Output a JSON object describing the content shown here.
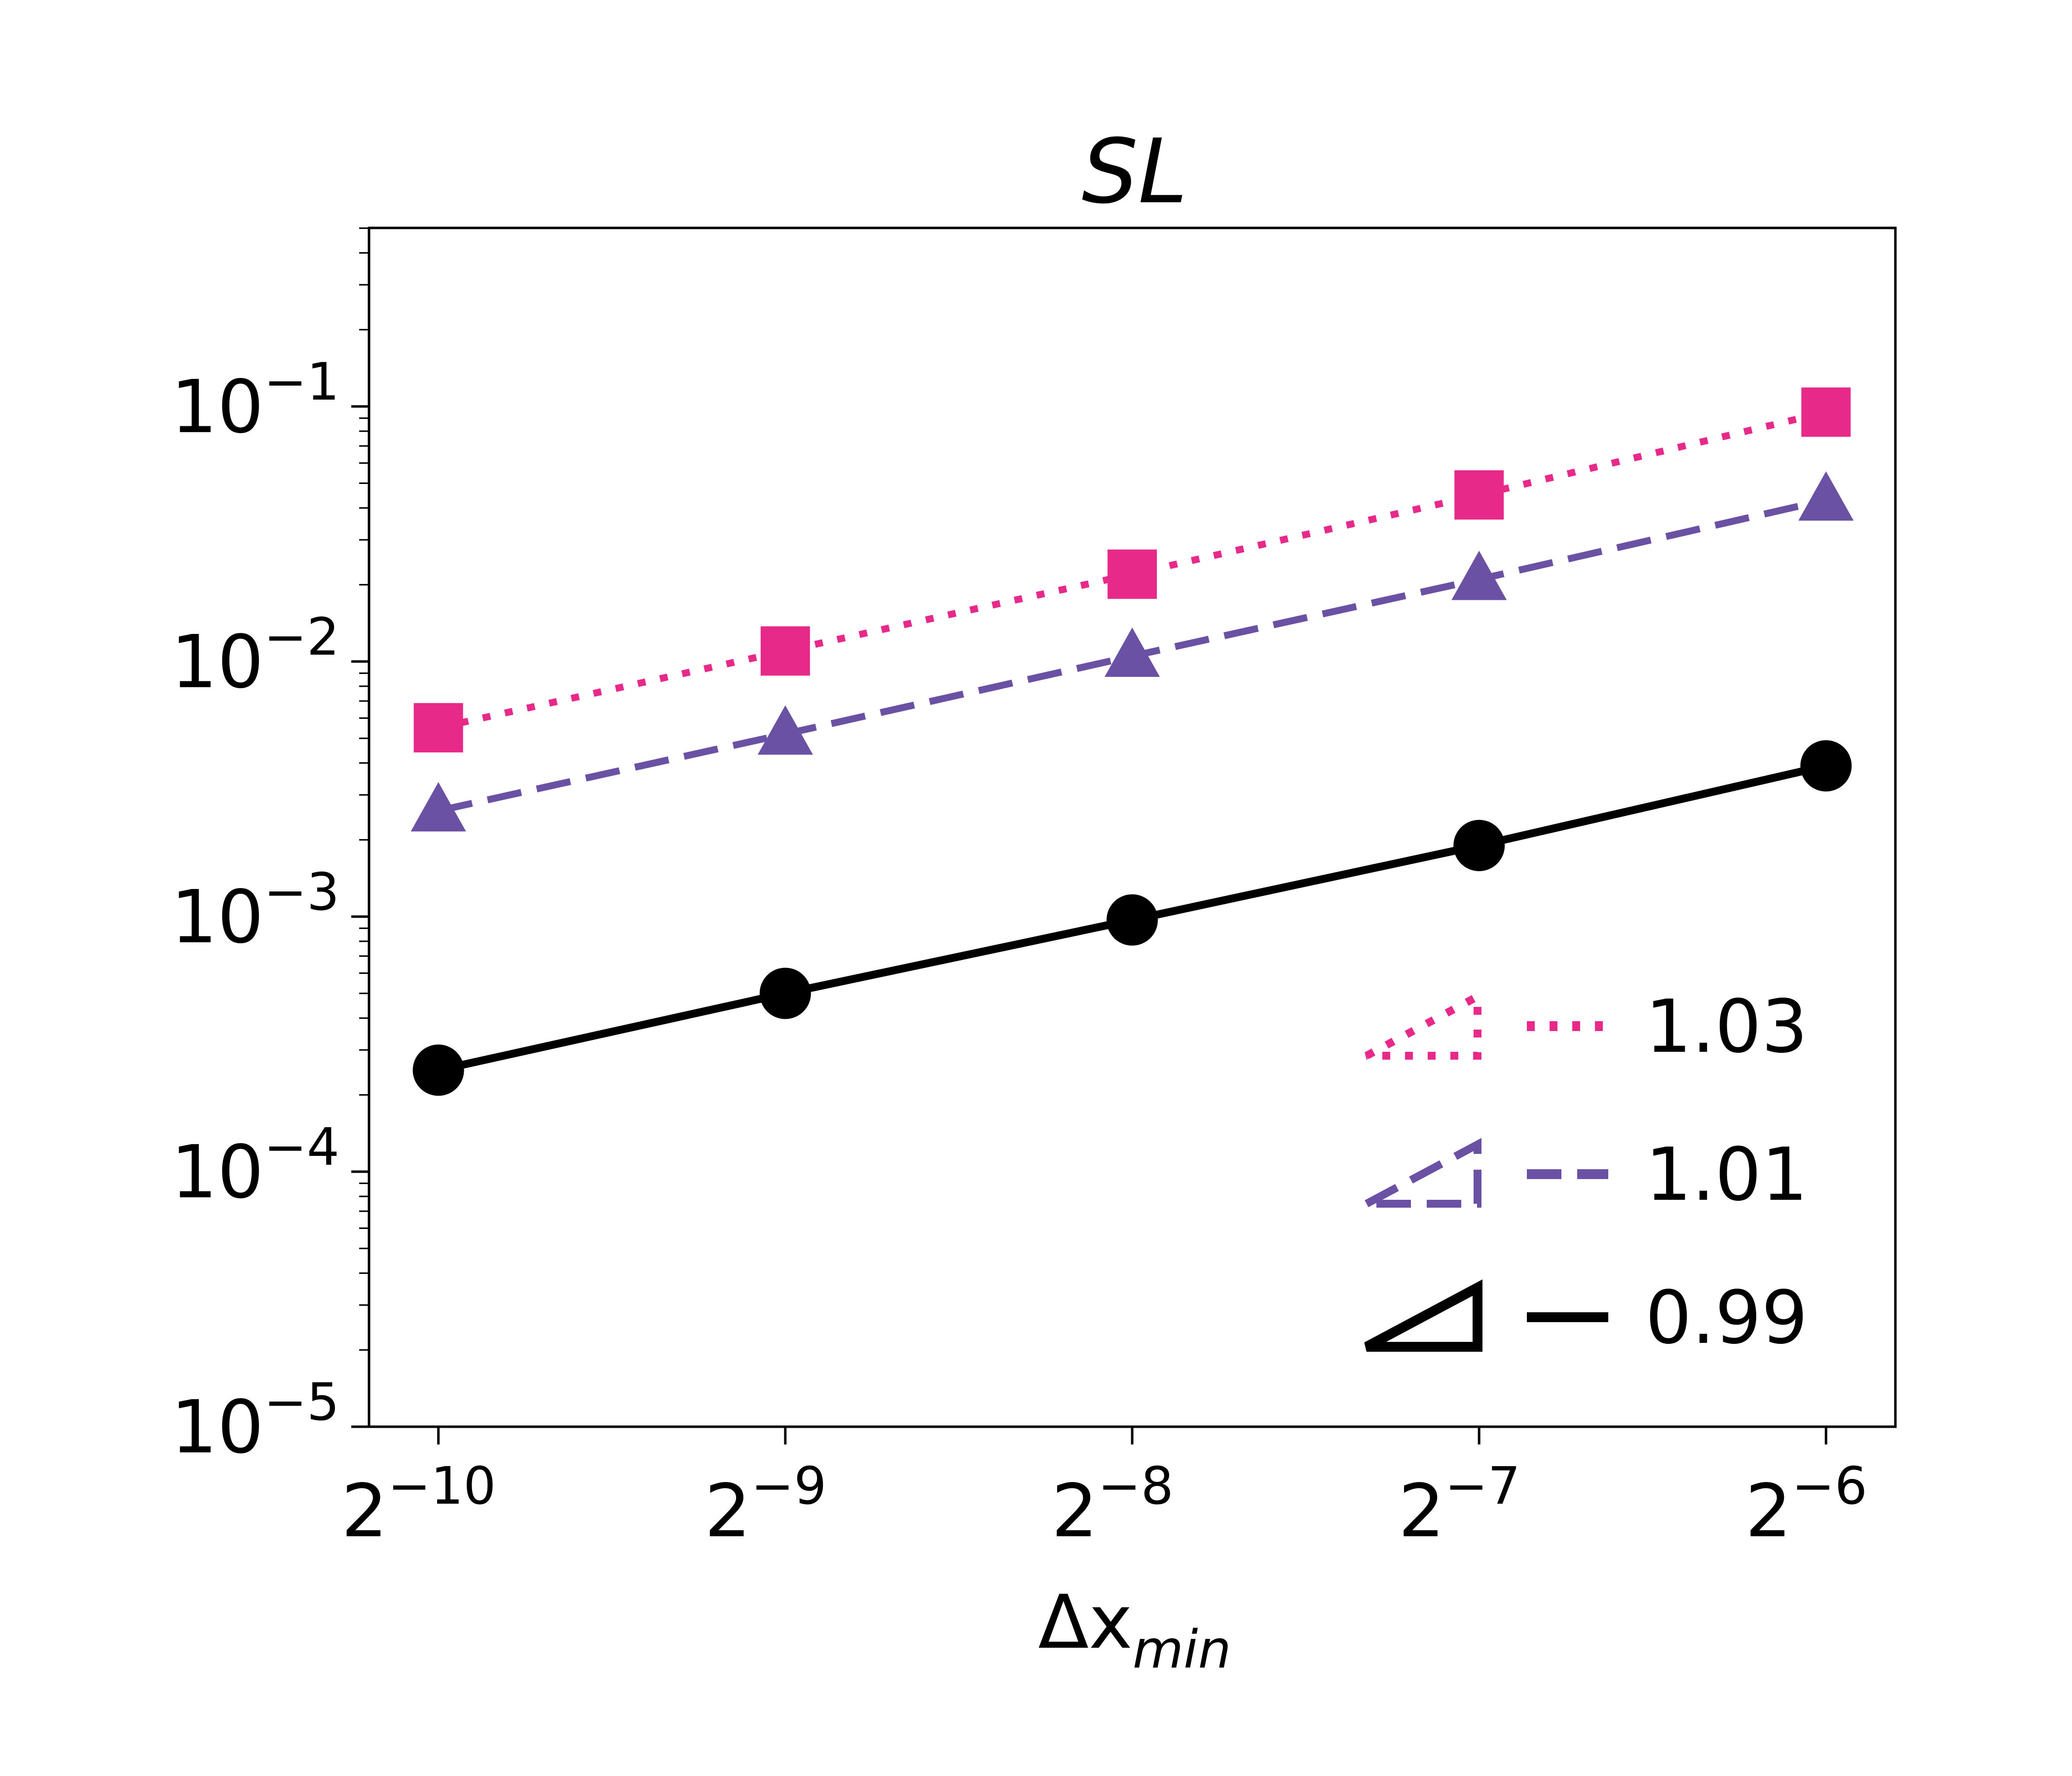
{
  "chart_data": {
    "type": "line",
    "title": "SL",
    "xscale": "log2",
    "yscale": "log10",
    "xlabel": {
      "symbol": "Δx",
      "subscript": "min"
    },
    "ylabel": "",
    "xlim_exponent": [
      -10.2,
      -5.8
    ],
    "ylim_exponent": [
      -5,
      -0.3
    ],
    "x_ticks": [
      {
        "base": "2",
        "exponent": "−10",
        "value_exp": -10
      },
      {
        "base": "2",
        "exponent": "−9",
        "value_exp": -9
      },
      {
        "base": "2",
        "exponent": "−8",
        "value_exp": -8
      },
      {
        "base": "2",
        "exponent": "−7",
        "value_exp": -7
      },
      {
        "base": "2",
        "exponent": "−6",
        "value_exp": -6
      }
    ],
    "y_ticks": [
      {
        "base": "10",
        "exponent": "−1",
        "value_exp": -1
      },
      {
        "base": "10",
        "exponent": "−2",
        "value_exp": -2
      },
      {
        "base": "10",
        "exponent": "−3",
        "value_exp": -3
      },
      {
        "base": "10",
        "exponent": "−4",
        "value_exp": -4
      },
      {
        "base": "10",
        "exponent": "−5",
        "value_exp": -5
      }
    ],
    "x": [
      0.0009765625,
      0.001953125,
      0.00390625,
      0.0078125,
      0.015625
    ],
    "series": [
      {
        "name": "pink-dotted",
        "legend": "1.03",
        "color": "#e7298a",
        "linestyle": "dotted",
        "marker": "square",
        "values": [
          0.0055,
          0.011,
          0.022,
          0.045,
          0.095
        ]
      },
      {
        "name": "purple-dashed",
        "legend": "1.01",
        "color": "#6a51a3",
        "linestyle": "dashed",
        "marker": "triangle",
        "values": [
          0.0026,
          0.0052,
          0.0105,
          0.021,
          0.043
        ]
      },
      {
        "name": "black-solid",
        "legend": "0.99",
        "color": "#000000",
        "linestyle": "solid",
        "marker": "circle",
        "values": [
          0.00025,
          0.0005,
          0.00097,
          0.0019,
          0.0039
        ]
      }
    ],
    "grid": false,
    "legend_position": "lower-right"
  }
}
